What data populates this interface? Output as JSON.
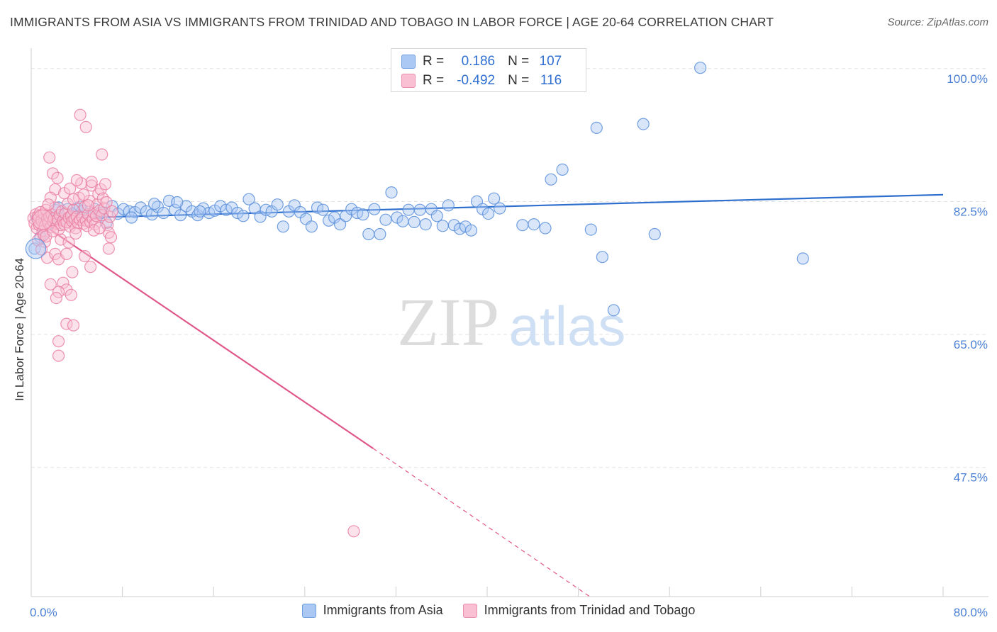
{
  "title": "IMMIGRANTS FROM ASIA VS IMMIGRANTS FROM TRINIDAD AND TOBAGO IN LABOR FORCE | AGE 20-64 CORRELATION CHART",
  "source": "Source: ZipAtlas.com",
  "watermark": {
    "zip": "ZIP",
    "atlas": "atlas"
  },
  "colors": {
    "blue": "#5b8fdb",
    "blue_fill": "#aac8f3",
    "blue_line": "#2e6fce",
    "pink": "#ea7fa2",
    "pink_fill": "#f8c0d2",
    "pink_line": "#e0578a",
    "tick_label": "#4a7fd4",
    "grid": "#e3e3e3"
  },
  "legend_stats": {
    "asia": {
      "r_label": "R =",
      "r_value": "0.186",
      "n_label": "N =",
      "n_value": "107"
    },
    "tt": {
      "r_label": "R =",
      "r_value": "-0.492",
      "n_label": "N =",
      "n_value": "116"
    }
  },
  "chart_data": {
    "type": "scatter",
    "title": "IMMIGRANTS FROM ASIA VS IMMIGRANTS FROM TRINIDAD AND TOBAGO IN LABOR FORCE | AGE 20-64 CORRELATION CHART",
    "xlabel": "",
    "ylabel": "In Labor Force | Age 20-64",
    "xlim": [
      0,
      80
    ],
    "ylim": [
      30.5,
      102.5
    ],
    "x_tick_labels": [
      "0.0%",
      "80.0%"
    ],
    "y_ticks": [
      {
        "value": 100.0,
        "label": "100.0%"
      },
      {
        "value": 82.5,
        "label": "82.5%"
      },
      {
        "value": 65.0,
        "label": "65.0%"
      },
      {
        "value": 47.5,
        "label": "47.5%"
      }
    ],
    "grid": "horizontal dashed",
    "legend_position": "bottom",
    "series": [
      {
        "name": "Immigrants from Asia",
        "color": "#5b8fdb",
        "trend": {
          "x": [
            0,
            80
          ],
          "y": [
            80.2,
            83.4
          ]
        },
        "points": [
          [
            0.3,
            76.3
          ],
          [
            0.5,
            80.3
          ],
          [
            0.8,
            79.6
          ],
          [
            1.1,
            78.2
          ],
          [
            1.4,
            80.6
          ],
          [
            1.8,
            80.1
          ],
          [
            2.1,
            81.4
          ],
          [
            2.6,
            80.2
          ],
          [
            3.2,
            81.5
          ],
          [
            3.6,
            80.9
          ],
          [
            4.0,
            81.6
          ],
          [
            4.5,
            81.3
          ],
          [
            5.1,
            80.6
          ],
          [
            5.6,
            81.5
          ],
          [
            6.1,
            81.0
          ],
          [
            6.6,
            79.7
          ],
          [
            7.1,
            81.9
          ],
          [
            7.6,
            80.9
          ],
          [
            8.1,
            81.5
          ],
          [
            8.6,
            81.2
          ],
          [
            9.1,
            81.1
          ],
          [
            9.6,
            81.7
          ],
          [
            10.1,
            81.2
          ],
          [
            10.6,
            80.8
          ],
          [
            11.1,
            81.8
          ],
          [
            11.6,
            81.0
          ],
          [
            12.1,
            82.6
          ],
          [
            12.6,
            81.4
          ],
          [
            13.1,
            80.7
          ],
          [
            13.6,
            81.9
          ],
          [
            14.1,
            81.2
          ],
          [
            14.6,
            80.7
          ],
          [
            15.1,
            81.6
          ],
          [
            15.6,
            81.0
          ],
          [
            16.1,
            81.3
          ],
          [
            16.6,
            81.9
          ],
          [
            17.1,
            81.4
          ],
          [
            17.6,
            81.7
          ],
          [
            18.1,
            81.0
          ],
          [
            18.6,
            80.6
          ],
          [
            19.1,
            82.8
          ],
          [
            19.6,
            81.6
          ],
          [
            20.1,
            80.5
          ],
          [
            20.6,
            81.4
          ],
          [
            21.1,
            81.2
          ],
          [
            21.6,
            82.1
          ],
          [
            22.1,
            79.2
          ],
          [
            22.6,
            81.2
          ],
          [
            23.1,
            82.0
          ],
          [
            23.6,
            81.1
          ],
          [
            24.1,
            80.2
          ],
          [
            24.6,
            79.2
          ],
          [
            25.1,
            81.7
          ],
          [
            25.6,
            81.4
          ],
          [
            26.1,
            80.0
          ],
          [
            26.6,
            80.4
          ],
          [
            27.1,
            79.5
          ],
          [
            27.6,
            80.6
          ],
          [
            28.1,
            81.5
          ],
          [
            28.6,
            81.0
          ],
          [
            29.1,
            80.8
          ],
          [
            29.6,
            78.2
          ],
          [
            30.1,
            81.5
          ],
          [
            30.6,
            78.2
          ],
          [
            31.1,
            80.1
          ],
          [
            31.6,
            83.7
          ],
          [
            32.1,
            80.4
          ],
          [
            32.6,
            79.9
          ],
          [
            33.1,
            81.4
          ],
          [
            33.6,
            79.8
          ],
          [
            34.1,
            81.4
          ],
          [
            34.6,
            79.5
          ],
          [
            35.1,
            81.5
          ],
          [
            35.6,
            80.6
          ],
          [
            36.1,
            79.3
          ],
          [
            36.6,
            82.0
          ],
          [
            37.1,
            79.4
          ],
          [
            37.6,
            78.9
          ],
          [
            38.1,
            79.2
          ],
          [
            38.6,
            78.7
          ],
          [
            39.1,
            82.5
          ],
          [
            39.6,
            81.5
          ],
          [
            40.1,
            80.9
          ],
          [
            40.6,
            82.9
          ],
          [
            41.1,
            81.6
          ],
          [
            43.1,
            79.4
          ],
          [
            44.1,
            79.5
          ],
          [
            45.1,
            79.0
          ],
          [
            45.6,
            85.4
          ],
          [
            46.6,
            86.7
          ],
          [
            49.6,
            92.2
          ],
          [
            49.1,
            78.8
          ],
          [
            50.1,
            75.2
          ],
          [
            51.1,
            68.2
          ],
          [
            53.7,
            92.7
          ],
          [
            54.7,
            78.2
          ],
          [
            58.7,
            100.1
          ],
          [
            67.7,
            75.0
          ],
          [
            0.8,
            77.8
          ],
          [
            1.6,
            79.6
          ],
          [
            2.4,
            81.7
          ],
          [
            4.3,
            81.8
          ],
          [
            6.3,
            81.1
          ],
          [
            8.8,
            80.4
          ],
          [
            10.8,
            82.2
          ],
          [
            12.8,
            82.4
          ],
          [
            14.8,
            81.2
          ]
        ]
      },
      {
        "name": "Immigrants from Trinidad and Tobago",
        "color": "#ea7fa2",
        "trend": {
          "x": [
            0,
            30.0,
            49.0
          ],
          "y": [
            80.5,
            50.0,
            30.5
          ],
          "solid_until_x": 30.0
        },
        "points": [
          [
            0.2,
            80.3
          ],
          [
            0.3,
            79.6
          ],
          [
            0.4,
            80.8
          ],
          [
            0.5,
            79.0
          ],
          [
            0.6,
            80.6
          ],
          [
            0.7,
            79.4
          ],
          [
            0.8,
            81.1
          ],
          [
            0.9,
            80.0
          ],
          [
            1.0,
            78.6
          ],
          [
            1.1,
            80.9
          ],
          [
            1.2,
            79.3
          ],
          [
            1.3,
            81.4
          ],
          [
            1.4,
            80.2
          ],
          [
            1.5,
            79.7
          ],
          [
            1.6,
            80.5
          ],
          [
            1.7,
            79.1
          ],
          [
            1.8,
            80.8
          ],
          [
            1.9,
            79.9
          ],
          [
            2.0,
            80.3
          ],
          [
            2.1,
            81.7
          ],
          [
            2.2,
            79.6
          ],
          [
            2.3,
            80.1
          ],
          [
            2.4,
            78.8
          ],
          [
            2.5,
            80.7
          ],
          [
            2.6,
            79.4
          ],
          [
            2.7,
            81.2
          ],
          [
            2.8,
            80.0
          ],
          [
            2.9,
            79.5
          ],
          [
            3.0,
            80.9
          ],
          [
            3.1,
            79.8
          ],
          [
            3.2,
            82.2
          ],
          [
            3.3,
            80.4
          ],
          [
            3.4,
            79.2
          ],
          [
            3.5,
            80.6
          ],
          [
            3.6,
            79.9
          ],
          [
            3.7,
            81.4
          ],
          [
            3.8,
            80.2
          ],
          [
            3.9,
            79.0
          ],
          [
            4.0,
            80.5
          ],
          [
            4.1,
            79.7
          ],
          [
            4.2,
            83.0
          ],
          [
            4.3,
            80.1
          ],
          [
            4.4,
            84.9
          ],
          [
            4.5,
            80.4
          ],
          [
            4.6,
            79.6
          ],
          [
            4.7,
            81.8
          ],
          [
            4.8,
            80.0
          ],
          [
            4.9,
            79.3
          ],
          [
            5.0,
            80.8
          ],
          [
            5.1,
            82.6
          ],
          [
            5.2,
            79.8
          ],
          [
            5.3,
            84.6
          ],
          [
            5.4,
            80.2
          ],
          [
            5.5,
            81.0
          ],
          [
            5.6,
            79.5
          ],
          [
            5.7,
            80.6
          ],
          [
            5.8,
            82.1
          ],
          [
            5.9,
            83.5
          ],
          [
            6.0,
            81.3
          ],
          [
            6.1,
            84.1
          ],
          [
            6.2,
            80.7
          ],
          [
            6.3,
            82.9
          ],
          [
            6.4,
            81.6
          ],
          [
            6.5,
            84.8
          ],
          [
            6.6,
            82.4
          ],
          [
            6.7,
            79.4
          ],
          [
            6.9,
            80.5
          ],
          [
            7.1,
            81.2
          ],
          [
            1.6,
            88.3
          ],
          [
            1.9,
            86.2
          ],
          [
            2.3,
            85.6
          ],
          [
            2.1,
            84.1
          ],
          [
            1.7,
            83.0
          ],
          [
            1.5,
            82.1
          ],
          [
            4.3,
            93.9
          ],
          [
            4.8,
            92.3
          ],
          [
            6.2,
            88.7
          ],
          [
            5.3,
            85.1
          ],
          [
            6.8,
            78.4
          ],
          [
            7.0,
            77.8
          ],
          [
            6.8,
            76.3
          ],
          [
            1.2,
            77.2
          ],
          [
            1.4,
            75.1
          ],
          [
            2.1,
            75.6
          ],
          [
            2.4,
            74.9
          ],
          [
            3.1,
            75.6
          ],
          [
            3.6,
            73.2
          ],
          [
            4.7,
            75.3
          ],
          [
            5.2,
            73.9
          ],
          [
            1.7,
            71.6
          ],
          [
            2.8,
            71.8
          ],
          [
            3.1,
            70.9
          ],
          [
            2.4,
            70.6
          ],
          [
            3.5,
            70.2
          ],
          [
            2.2,
            69.8
          ],
          [
            3.1,
            66.4
          ],
          [
            3.7,
            66.2
          ],
          [
            2.4,
            64.1
          ],
          [
            2.4,
            62.2
          ],
          [
            28.3,
            39.1
          ],
          [
            0.6,
            77.4
          ],
          [
            0.9,
            76.2
          ],
          [
            1.1,
            78.1
          ],
          [
            1.3,
            77.9
          ],
          [
            1.9,
            78.6
          ],
          [
            2.6,
            77.5
          ],
          [
            3.3,
            77.1
          ],
          [
            3.9,
            78.3
          ],
          [
            2.9,
            83.6
          ],
          [
            3.4,
            84.2
          ],
          [
            3.7,
            82.8
          ],
          [
            4.0,
            85.3
          ],
          [
            4.6,
            83.4
          ],
          [
            5.0,
            82.0
          ],
          [
            5.5,
            78.7
          ],
          [
            6.0,
            79.0
          ]
        ]
      }
    ]
  }
}
